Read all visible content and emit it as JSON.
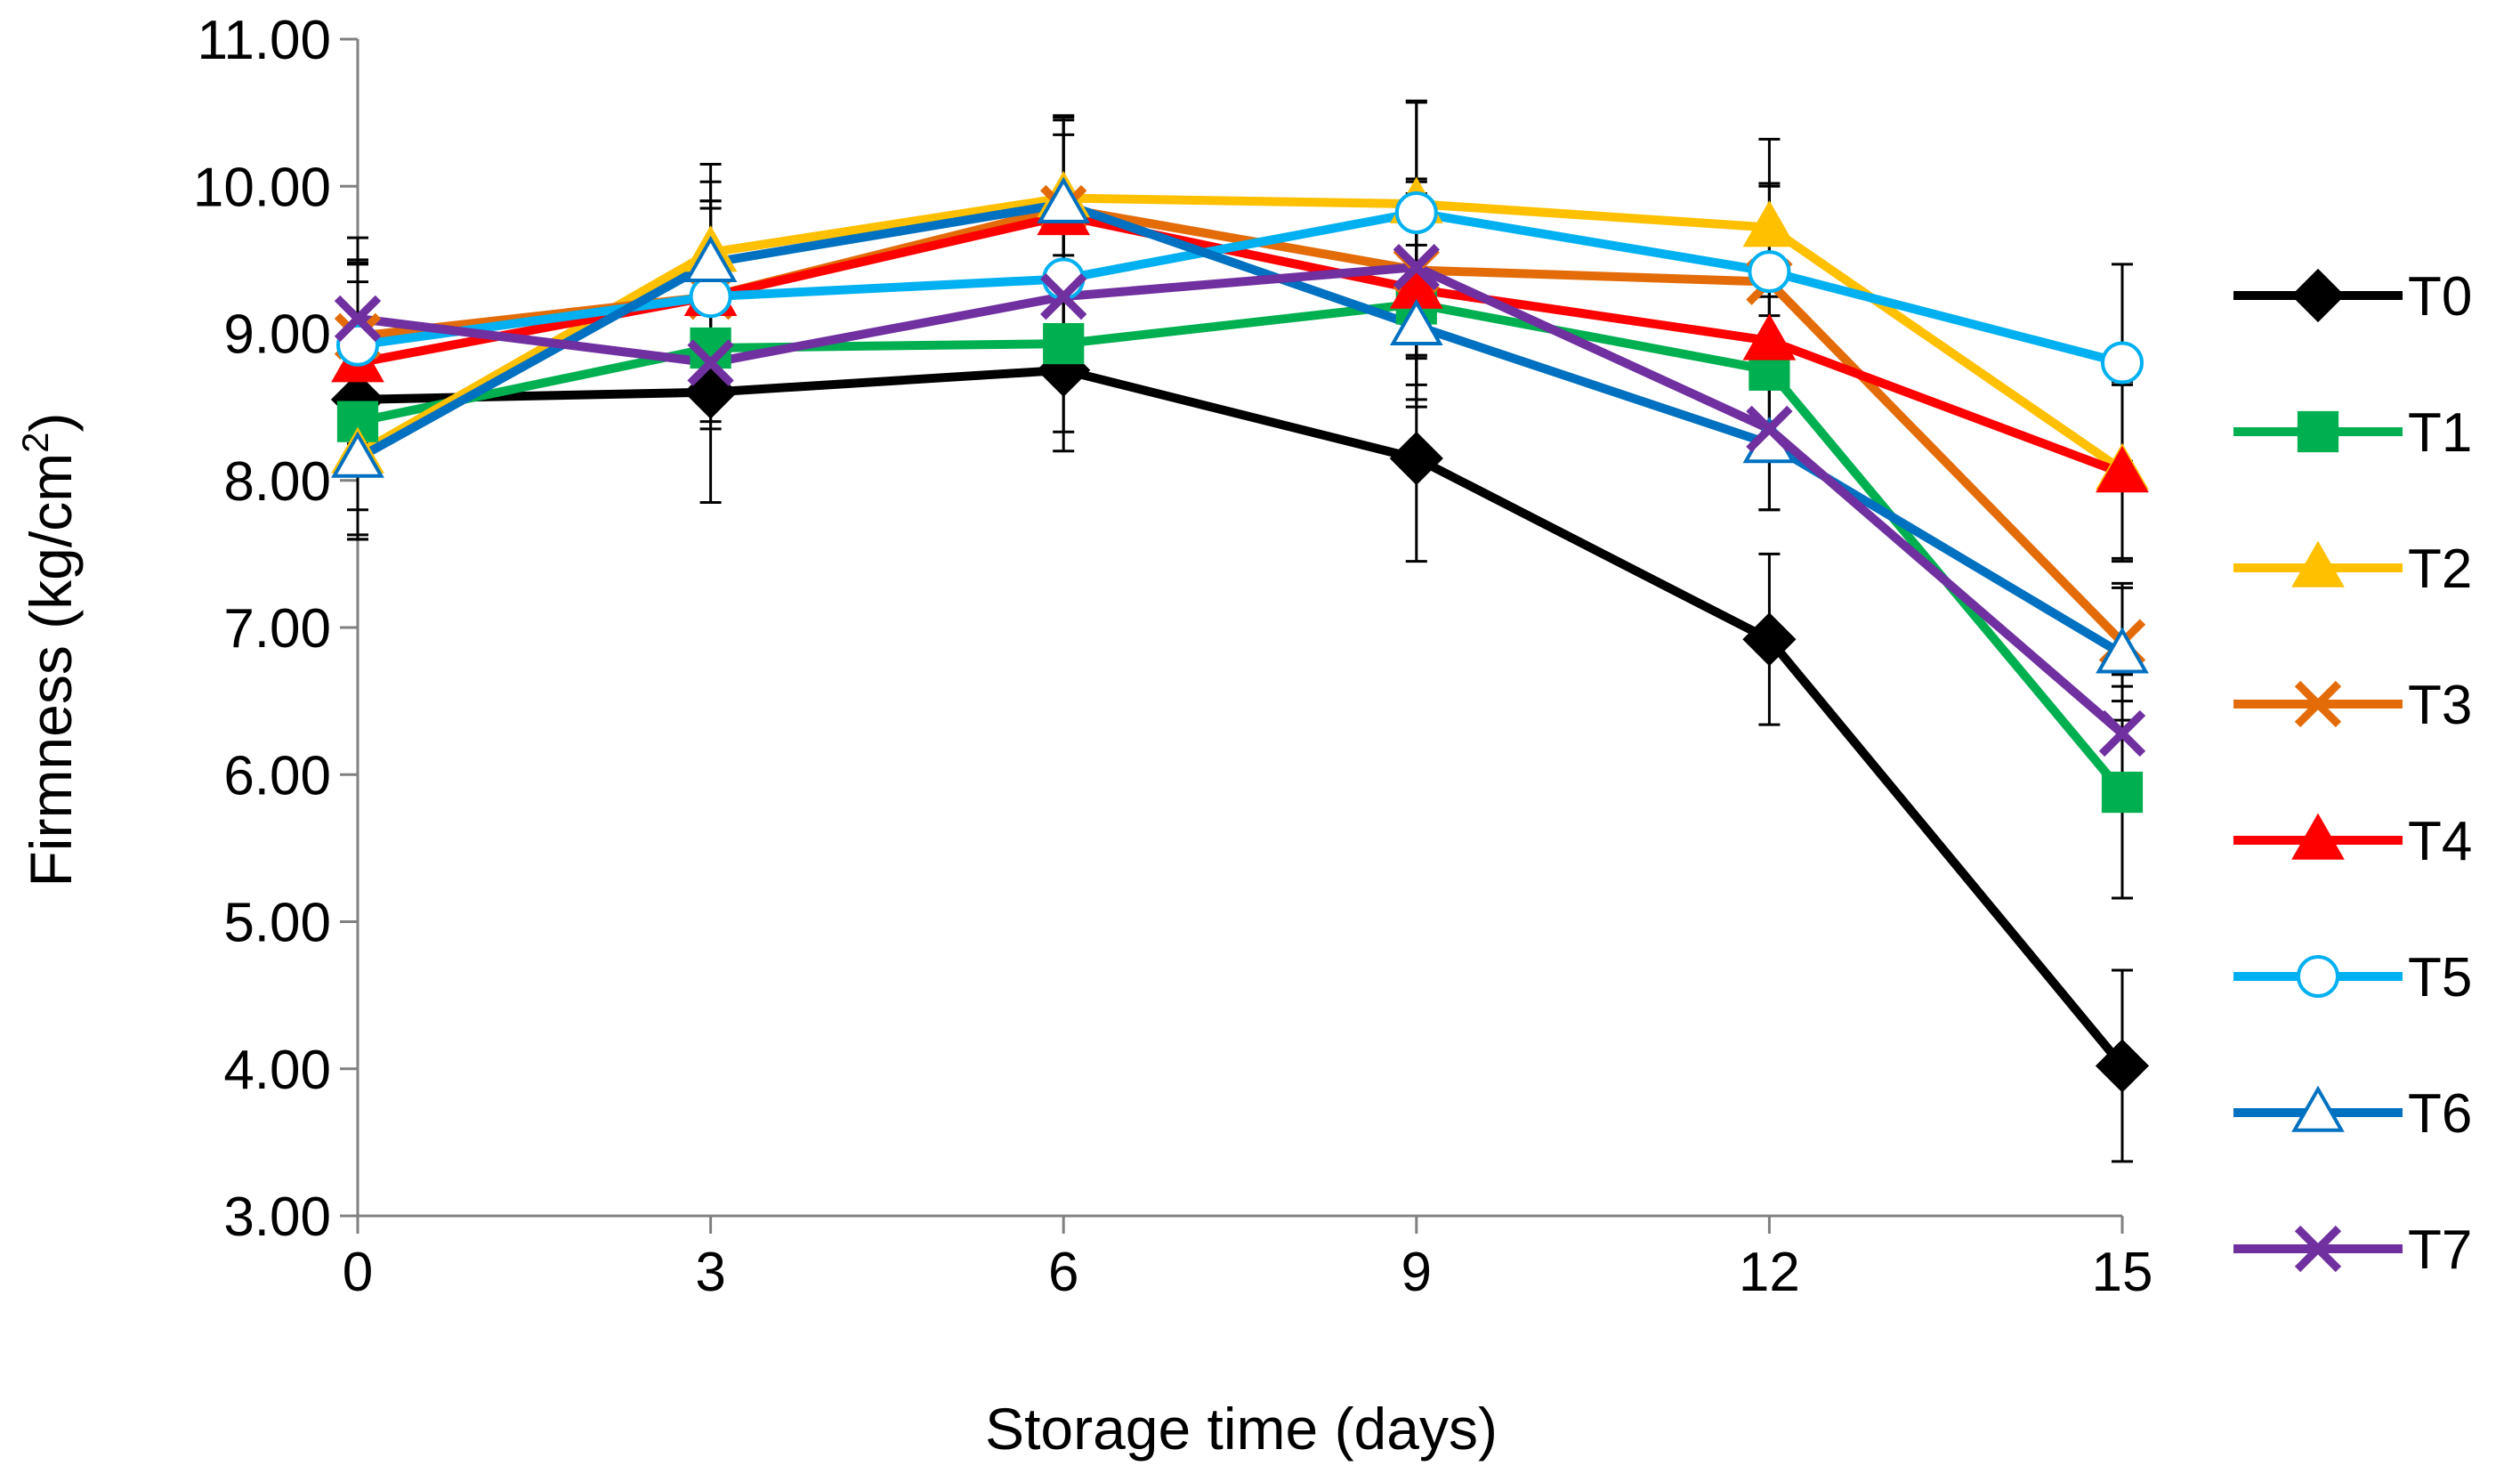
{
  "chart_data": {
    "type": "line",
    "title": "",
    "xlabel": "Storage time (days)",
    "ylabel_main": "Firmness (kg/cm",
    "ylabel_sup": "2",
    "ylabel_close": ")",
    "x": [
      0,
      3,
      6,
      9,
      12,
      15
    ],
    "x_tick_labels": [
      "0",
      "3",
      "6",
      "9",
      "12",
      "15"
    ],
    "ylim": [
      3,
      11
    ],
    "y_ticks": [
      3,
      4,
      5,
      6,
      7,
      8,
      9,
      10,
      11
    ],
    "y_tick_labels": [
      "3.00",
      "4.00",
      "5.00",
      "6.00",
      "7.00",
      "8.00",
      "9.00",
      "10.00",
      "11.00"
    ],
    "grid": false,
    "legend_position": "right",
    "series": [
      {
        "name": "T0",
        "color": "#000000",
        "marker": "diamond",
        "filled": true,
        "values": [
          8.55,
          8.6,
          8.75,
          8.15,
          6.92,
          4.02
        ],
        "errors": [
          0.95,
          0.75,
          0.55,
          0.7,
          0.58,
          0.65
        ]
      },
      {
        "name": "T1",
        "color": "#00B050",
        "marker": "square",
        "filled": true,
        "values": [
          8.4,
          8.9,
          8.93,
          9.2,
          8.75,
          5.88
        ],
        "errors": [
          0.6,
          0.5,
          0.6,
          0.65,
          0.5,
          0.72
        ]
      },
      {
        "name": "T2",
        "color": "#FFC000",
        "marker": "triangle",
        "filled": true,
        "values": [
          8.18,
          9.55,
          9.92,
          9.88,
          9.72,
          8.07
        ],
        "errors": [
          0.55,
          0.6,
          0.55,
          0.7,
          0.6,
          0.6
        ]
      },
      {
        "name": "T3",
        "color": "#E36C09",
        "marker": "x",
        "filled": true,
        "values": [
          8.98,
          9.25,
          9.85,
          9.43,
          9.35,
          6.9
        ],
        "errors": [
          0.5,
          0.65,
          0.6,
          0.6,
          0.65,
          0.4
        ]
      },
      {
        "name": "T4",
        "color": "#FF0000",
        "marker": "triangle",
        "filled": true,
        "values": [
          8.8,
          9.25,
          9.8,
          9.3,
          8.95,
          8.05
        ],
        "errors": [
          0.55,
          0.65,
          0.55,
          0.65,
          0.55,
          0.6
        ]
      },
      {
        "name": "T5",
        "color": "#00B0F0",
        "marker": "circle",
        "filled": false,
        "values": [
          8.92,
          9.25,
          9.37,
          9.82,
          9.42,
          8.8
        ],
        "errors": [
          0.55,
          0.6,
          0.6,
          0.75,
          0.6,
          0.67
        ]
      },
      {
        "name": "T6",
        "color": "#0070C0",
        "marker": "triangle",
        "filled": false,
        "values": [
          8.15,
          9.48,
          9.88,
          9.05,
          8.25,
          6.82
        ],
        "errors": [
          0.55,
          0.55,
          0.6,
          0.55,
          0.45,
          0.45
        ]
      },
      {
        "name": "T7",
        "color": "#7030A0",
        "marker": "x",
        "filled": true,
        "values": [
          9.1,
          8.8,
          9.25,
          9.45,
          8.35,
          6.28
        ],
        "errors": [
          0.55,
          0.45,
          0.5,
          0.6,
          0.55,
          0.4
        ]
      }
    ]
  }
}
